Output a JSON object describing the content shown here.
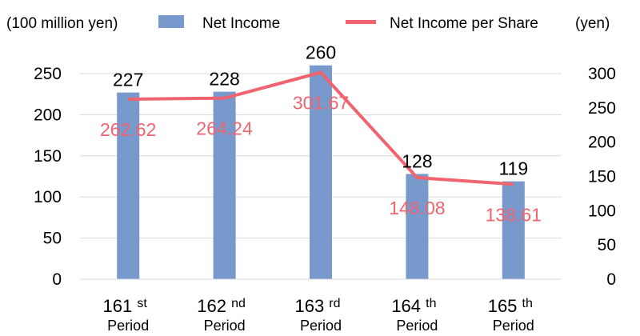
{
  "chart_data": {
    "type": "bar",
    "left_axis_unit": "(100 million yen)",
    "right_axis_unit": "(yen)",
    "categories": [
      {
        "num": "161",
        "suffix": "st",
        "line2": "Period"
      },
      {
        "num": "162",
        "suffix": "nd",
        "line2": "Period"
      },
      {
        "num": "163",
        "suffix": "rd",
        "line2": "Period"
      },
      {
        "num": "164",
        "suffix": "th",
        "line2": "Period"
      },
      {
        "num": "165",
        "suffix": "th",
        "line2": "Period"
      }
    ],
    "series": [
      {
        "name": "Net Income",
        "type": "bar",
        "axis": "left",
        "color": "#7799cc",
        "values": [
          227,
          228,
          260,
          128,
          119
        ],
        "labels": [
          "227",
          "228",
          "260",
          "128",
          "119"
        ]
      },
      {
        "name": "Net Income per Share",
        "type": "line",
        "axis": "right",
        "color": "#f06470",
        "values": [
          262.62,
          264.24,
          301.67,
          148.08,
          138.61
        ],
        "labels": [
          "262.62",
          "264.24",
          "301.67",
          "148.08",
          "138.61"
        ]
      }
    ],
    "left_axis": {
      "min": 0,
      "max": 250,
      "ticks": [
        "0",
        "50",
        "100",
        "150",
        "200",
        "250"
      ]
    },
    "right_axis": {
      "min": 0,
      "max": 300,
      "ticks": [
        "0",
        "50",
        "100",
        "150",
        "200",
        "250",
        "300"
      ]
    },
    "grid": true,
    "legend_position": "top"
  }
}
